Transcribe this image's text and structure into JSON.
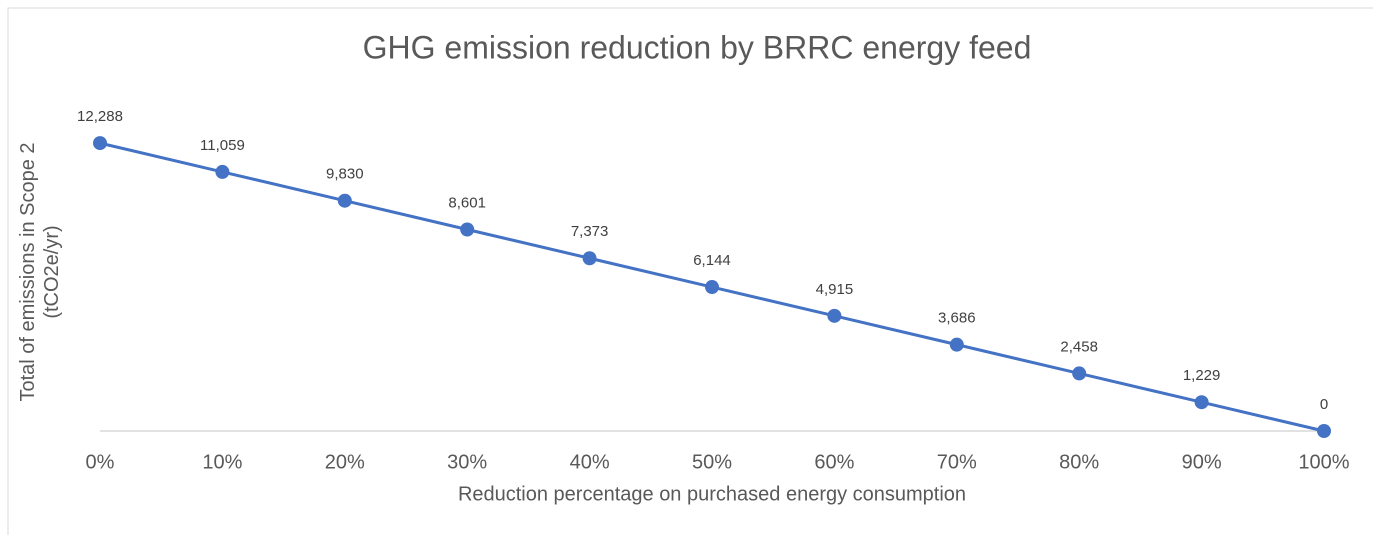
{
  "chart_data": {
    "type": "line",
    "title": "GHG emission reduction by BRRC energy feed",
    "x_label": "Reduction percentage on purchased energy consumption",
    "y_label": "Total of emissions in Scope 2 (tCO2e/yr)",
    "categories": [
      "0%",
      "10%",
      "20%",
      "30%",
      "40%",
      "50%",
      "60%",
      "70%",
      "80%",
      "90%",
      "100%"
    ],
    "series": [
      {
        "name": "Total of emissions in Scope 2",
        "color": "#4472c4",
        "values": [
          12288,
          11059,
          9830,
          8601,
          7373,
          6144,
          4915,
          3686,
          2458,
          1229,
          0
        ],
        "value_labels": [
          "12,288",
          "11,059",
          "9,830",
          "8,601",
          "7,373",
          "6,144",
          "4,915",
          "3,686",
          "2,458",
          "1,229",
          "0"
        ]
      }
    ],
    "ylim": [
      0,
      14000
    ],
    "grid": false
  }
}
